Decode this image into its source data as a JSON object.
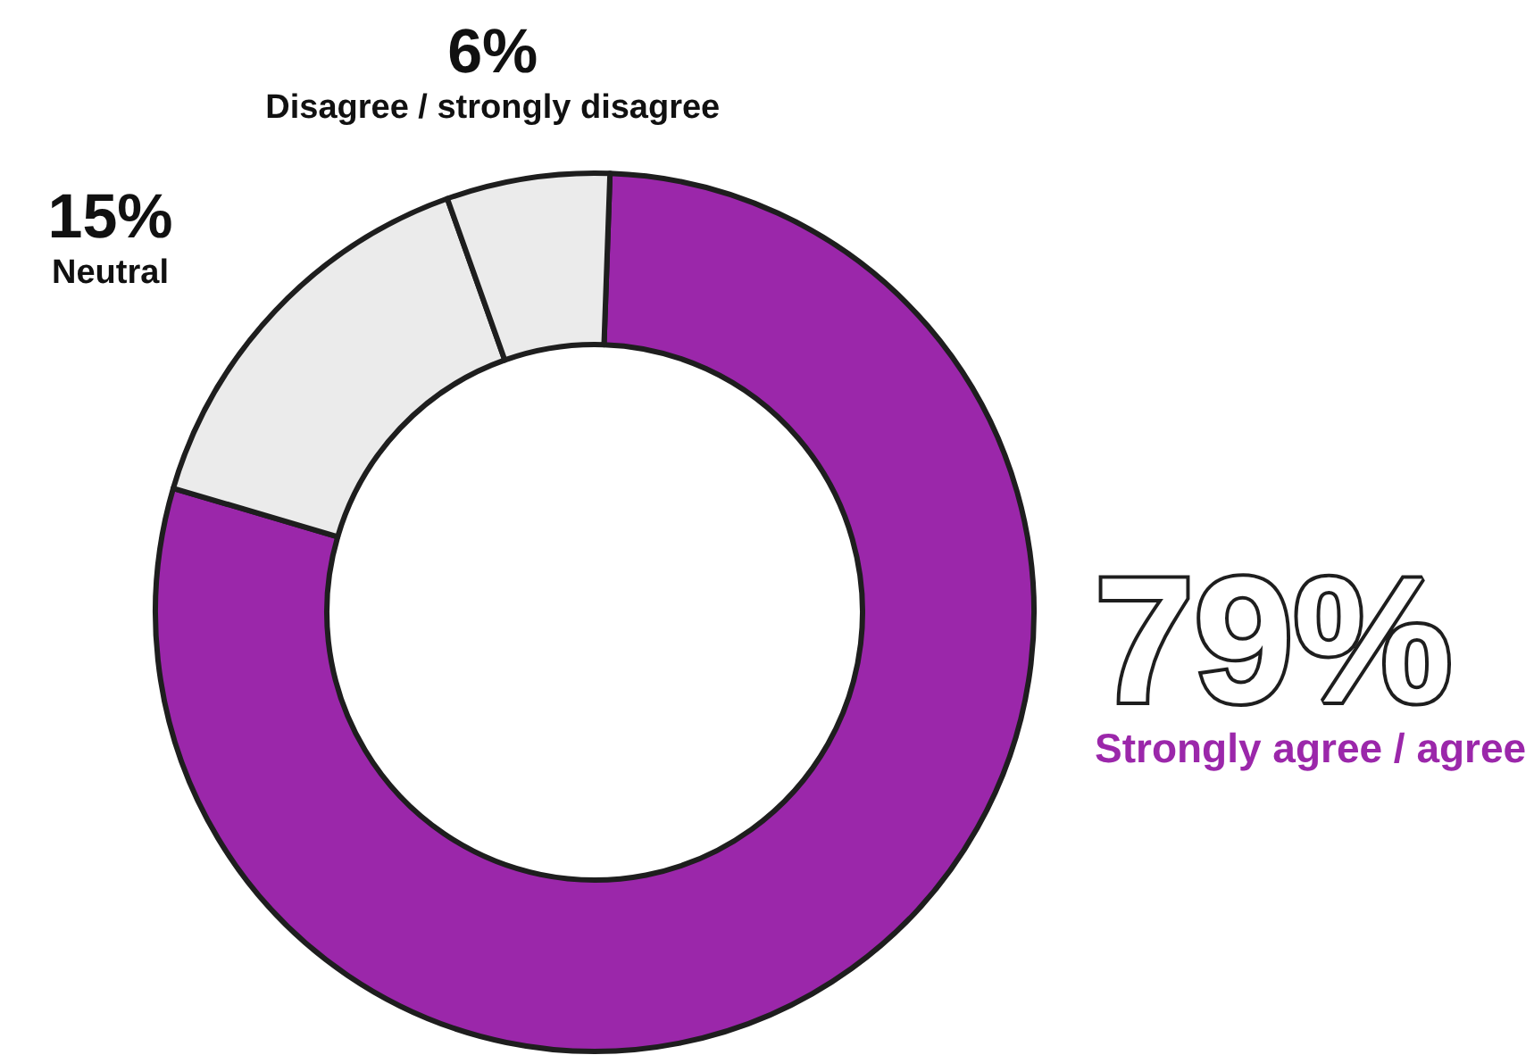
{
  "chart_data": {
    "type": "donut",
    "categories": [
      "Strongly agree / agree",
      "Neutral",
      "Disagree / strongly disagree"
    ],
    "values": [
      79,
      15,
      6
    ],
    "value_labels": [
      "79%",
      "15%",
      "6%"
    ],
    "colors": [
      "#9b27aa",
      "#ebebeb",
      "#ebebeb"
    ],
    "legend": false
  }
}
